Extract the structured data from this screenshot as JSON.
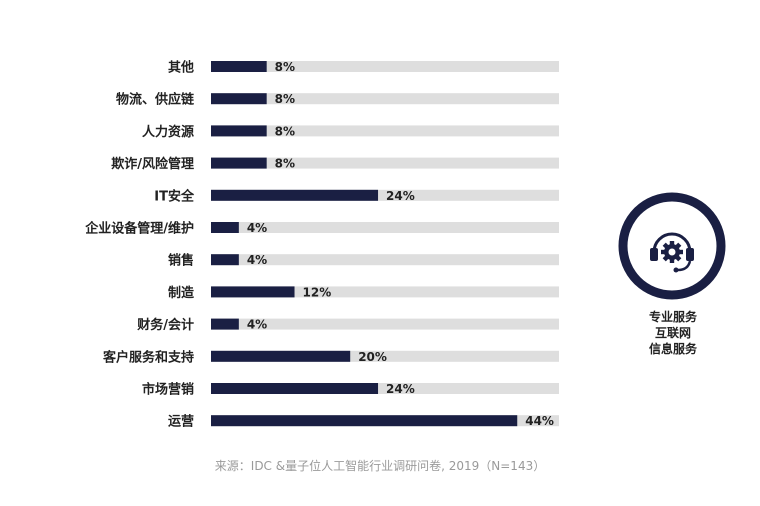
{
  "chart_data": {
    "type": "bar",
    "orientation": "horizontal",
    "categories": [
      "其他",
      "物流、供应链",
      "人力资源",
      "欺诈/风险管理",
      "IT安全",
      "企业设备管理/维护",
      "销售",
      "制造",
      "财务/会计",
      "客户服务和支持",
      "市场营销",
      "运营"
    ],
    "values": [
      8,
      8,
      8,
      8,
      24,
      4,
      4,
      12,
      4,
      20,
      24,
      44
    ],
    "value_labels": [
      "8%",
      "8%",
      "8%",
      "8%",
      "24%",
      "4%",
      "4%",
      "12%",
      "4%",
      "20%",
      "24%",
      "44%"
    ],
    "xlim": [
      0,
      50
    ],
    "unit": "%",
    "grid": false,
    "colors": {
      "bar": "#1a1f43",
      "track": "#dedede"
    }
  },
  "badge": {
    "icon": "headset-gear-icon",
    "color": "#1a1f43",
    "lines": [
      "专业服务",
      "互联网",
      "信息服务"
    ]
  },
  "source": "来源：IDC &量子位人工智能行业调研问卷, 2019（N=143）"
}
